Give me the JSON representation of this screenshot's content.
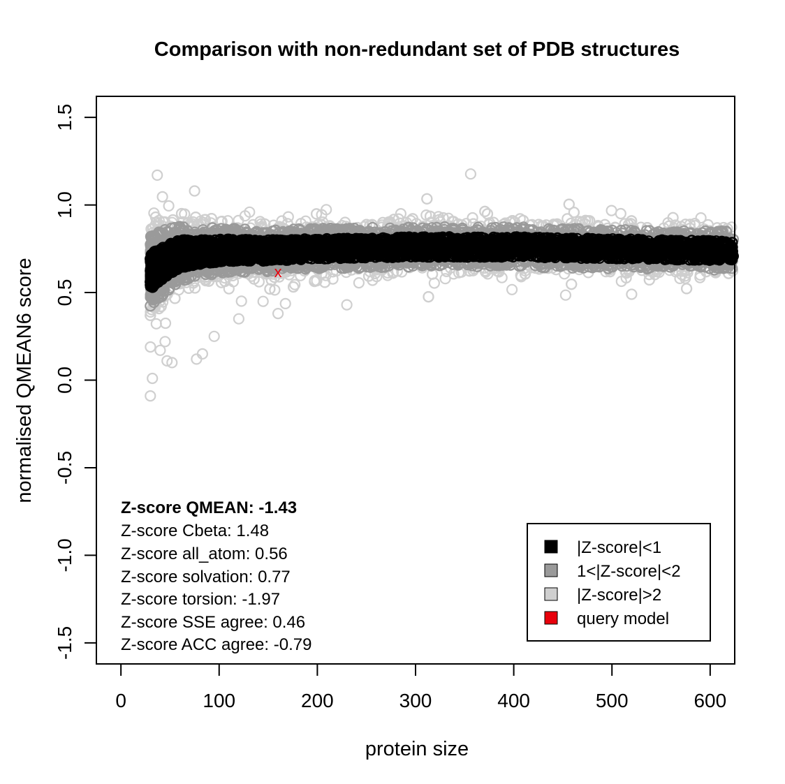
{
  "chart_data": {
    "type": "scatter",
    "title": "Comparison with non-redundant set of PDB structures",
    "xlabel": "protein size",
    "ylabel": "normalised QMEAN6 score",
    "xlim": [
      -25,
      625
    ],
    "ylim": [
      -1.62,
      1.62
    ],
    "xticks": [
      0,
      100,
      200,
      300,
      400,
      500,
      600
    ],
    "yticks": [
      -1.5,
      -1.0,
      -0.5,
      0.0,
      0.5,
      1.0,
      1.5
    ],
    "xtick_labels": [
      "0",
      "100",
      "200",
      "300",
      "400",
      "500",
      "600"
    ],
    "ytick_labels": [
      "-1.5",
      "-1.0",
      "-0.5",
      "0.0",
      "0.5",
      "1.0",
      "1.5"
    ],
    "grid": false,
    "legend_position": "bottom-right",
    "series": [
      {
        "name": "|Z-score|<1",
        "color": "#000000",
        "marker": "open-circle"
      },
      {
        "name": "1<|Z-score|<2",
        "color": "#9a9a9a",
        "marker": "open-circle"
      },
      {
        "name": "|Z-score|>2",
        "color": "#cfcfcf",
        "marker": "open-circle"
      },
      {
        "name": "query model",
        "color": "#e8000b",
        "marker": "x",
        "points": [
          {
            "x": 160,
            "y": 0.62
          }
        ]
      }
    ],
    "background_band": {
      "x": [
        30,
        40,
        50,
        60,
        80,
        100,
        130,
        150,
        200,
        250,
        300,
        350,
        400,
        450,
        500,
        550,
        600,
        625
      ],
      "center": [
        0.62,
        0.66,
        0.69,
        0.72,
        0.73,
        0.74,
        0.74,
        0.74,
        0.75,
        0.755,
        0.76,
        0.76,
        0.76,
        0.755,
        0.75,
        0.745,
        0.74,
        0.74
      ],
      "sd": [
        0.1,
        0.095,
        0.09,
        0.08,
        0.07,
        0.065,
        0.062,
        0.06,
        0.058,
        0.058,
        0.058,
        0.058,
        0.058,
        0.057,
        0.057,
        0.056,
        0.056,
        0.056
      ]
    },
    "outliers": [
      {
        "x": 37,
        "y": 1.17
      },
      {
        "x": 30,
        "y": -0.09
      },
      {
        "x": 32,
        "y": 0.01
      },
      {
        "x": 47,
        "y": 0.11
      },
      {
        "x": 52,
        "y": 0.1
      },
      {
        "x": 77,
        "y": 0.12
      },
      {
        "x": 83,
        "y": 0.15
      },
      {
        "x": 95,
        "y": 0.25
      },
      {
        "x": 160,
        "y": 0.38
      },
      {
        "x": 520,
        "y": 0.49
      },
      {
        "x": 75,
        "y": 1.08
      },
      {
        "x": 40,
        "y": 0.17
      },
      {
        "x": 45,
        "y": 0.22
      },
      {
        "x": 120,
        "y": 0.35
      },
      {
        "x": 230,
        "y": 0.43
      }
    ]
  },
  "annotations": {
    "qmean": "Z-score QMEAN: -1.43",
    "cbeta": "Z-score Cbeta: 1.48",
    "all_atom": "Z-score all_atom: 0.56",
    "solvation": "Z-score solvation: 0.77",
    "torsion": "Z-score torsion: -1.97",
    "sse": "Z-score SSE agree: 0.46",
    "acc": "Z-score ACC agree: -0.79"
  },
  "query_marker_label": "x"
}
